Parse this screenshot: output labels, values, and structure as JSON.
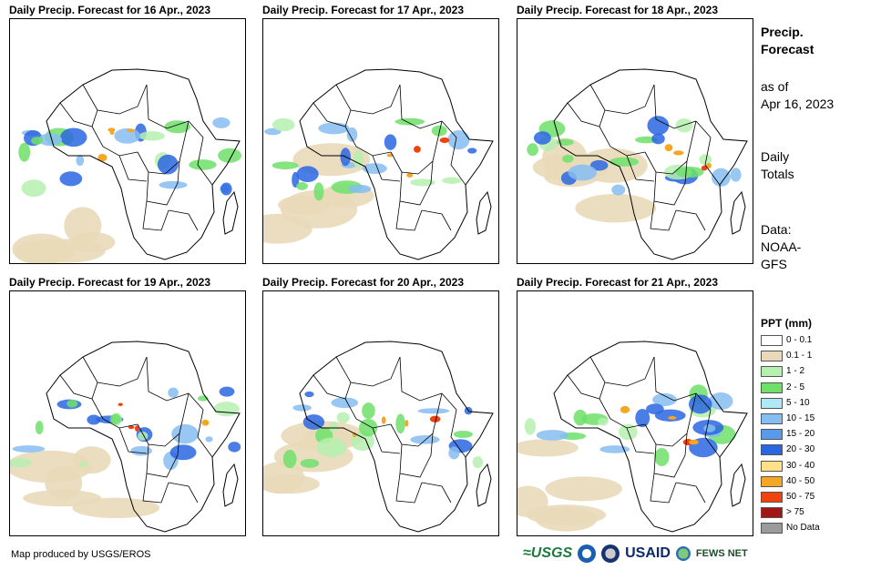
{
  "panels": [
    {
      "title": "Daily Precip. Forecast for 16 Apr., 2023"
    },
    {
      "title": "Daily Precip. Forecast for 17 Apr., 2023"
    },
    {
      "title": "Daily Precip. Forecast for 18 Apr., 2023"
    },
    {
      "title": "Daily Precip. Forecast for 19 Apr., 2023"
    },
    {
      "title": "Daily Precip. Forecast for 20 Apr., 2023"
    },
    {
      "title": "Daily Precip. Forecast for 21 Apr., 2023"
    }
  ],
  "sidebar": {
    "heading_line1": "Precip.",
    "heading_line2": "Forecast",
    "asof_line1": "as of",
    "asof_line2": "Apr 16, 2023",
    "daily_line1": "Daily",
    "daily_line2": "Totals",
    "data_line1": "Data:",
    "data_line2": "NOAA-",
    "data_line3": "GFS"
  },
  "legend": {
    "title": "PPT (mm)",
    "items": [
      {
        "label": "0 - 0.1",
        "color": "#ffffff"
      },
      {
        "label": "0.1 - 1",
        "color": "#e9d9b8"
      },
      {
        "label": "1 - 2",
        "color": "#b6f0b0"
      },
      {
        "label": "2 - 5",
        "color": "#6ee06a"
      },
      {
        "label": "5 - 10",
        "color": "#aee9f5"
      },
      {
        "label": "10 - 15",
        "color": "#86bdf2"
      },
      {
        "label": "15 - 20",
        "color": "#5a9aea"
      },
      {
        "label": "20 - 30",
        "color": "#2a66e0"
      },
      {
        "label": "30 - 40",
        "color": "#fde28a"
      },
      {
        "label": "40 - 50",
        "color": "#f5a623"
      },
      {
        "label": "50 - 75",
        "color": "#f2430f"
      },
      {
        "label": "> 75",
        "color": "#a31616"
      },
      {
        "label": "No Data",
        "color": "#9b9b9b"
      }
    ]
  },
  "footer": {
    "credit": "Map produced by USGS/EROS"
  },
  "logos": {
    "usgs": "≈USGS",
    "usaid": "USAID",
    "fews": "FEWS NET"
  }
}
